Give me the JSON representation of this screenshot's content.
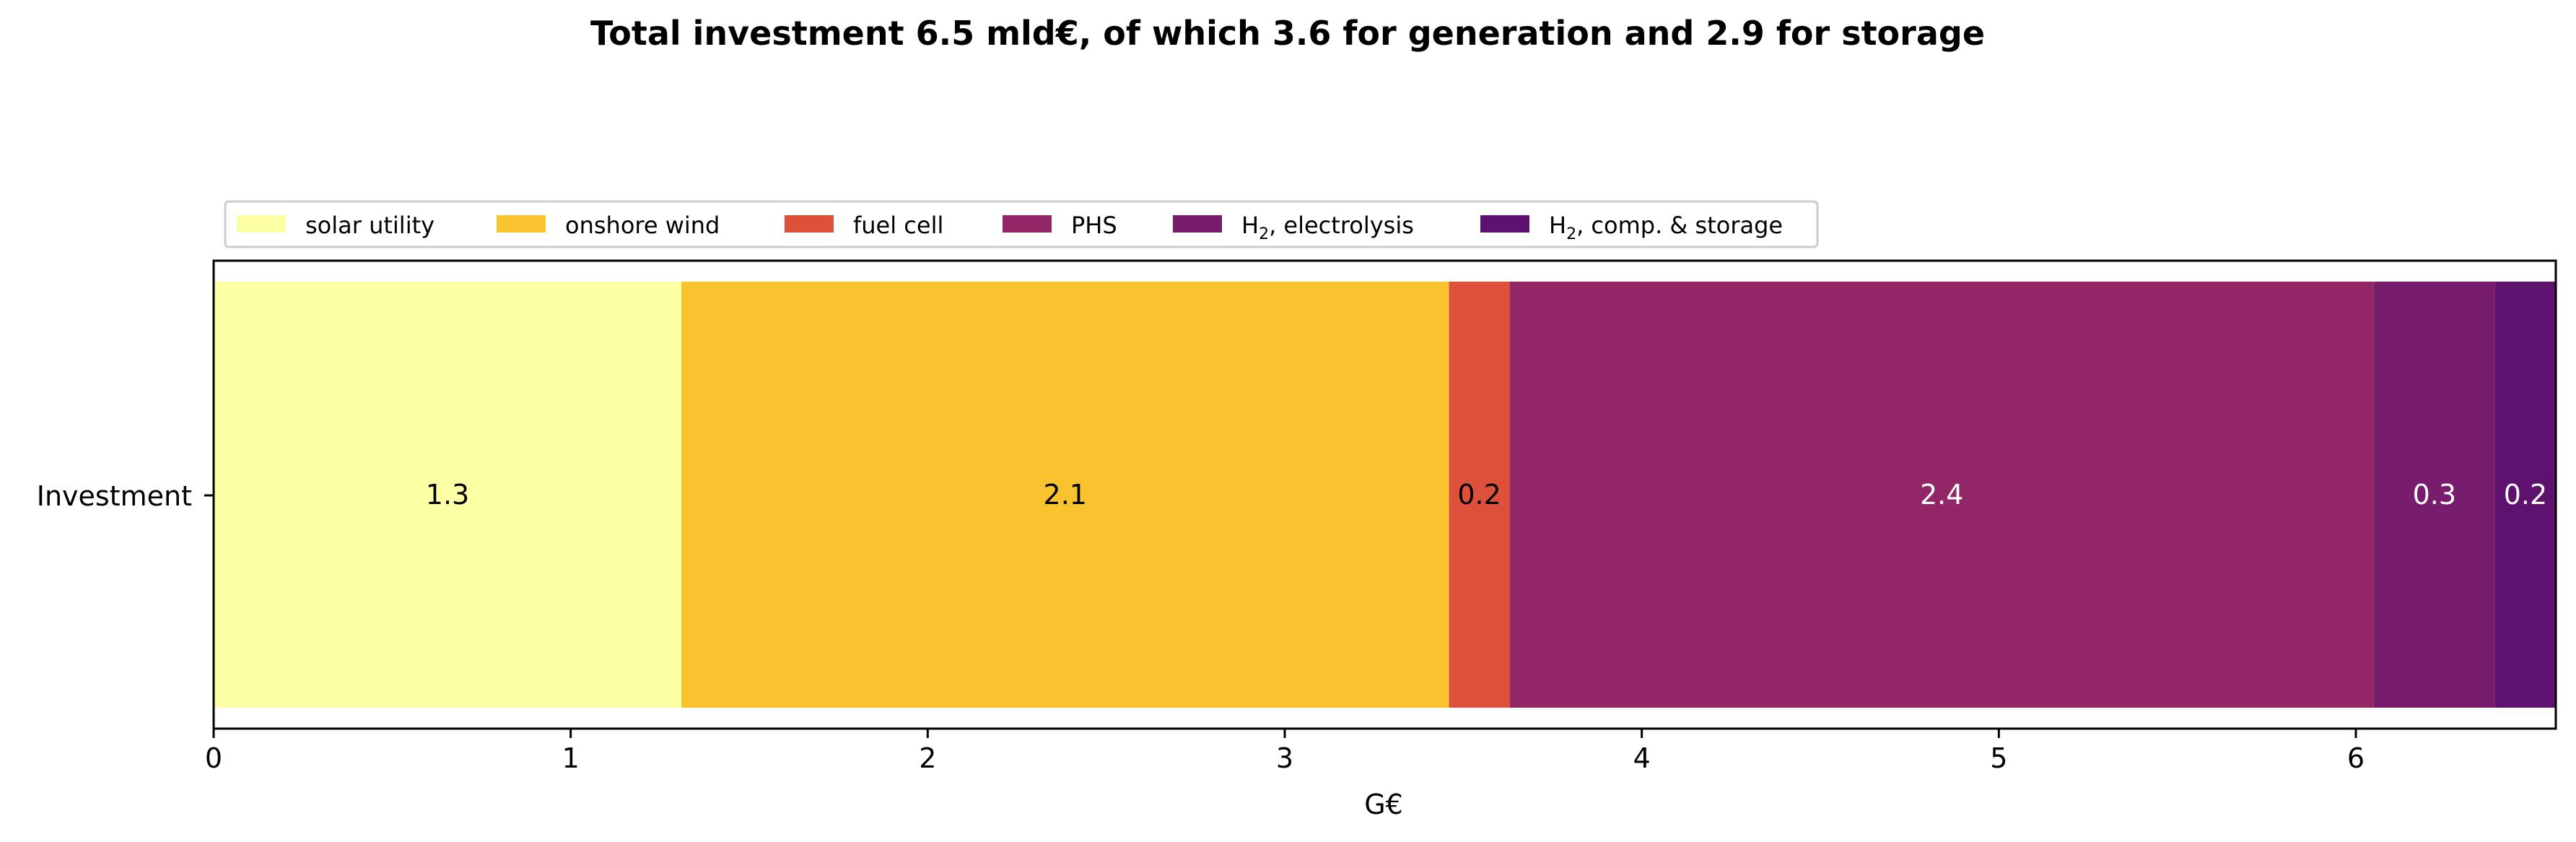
{
  "chart_data": {
    "type": "bar",
    "orientation": "horizontal",
    "stacked": true,
    "title": "Total investment 6.5 mld€, of which 3.6 for generation and 2.9 for storage",
    "xlabel": "G€",
    "ylabel": "",
    "categories": [
      "Investment"
    ],
    "xlim": [
      0,
      6.56
    ],
    "xticks": [
      0,
      1,
      2,
      3,
      4,
      5,
      6
    ],
    "grid": false,
    "legend_position": "top-left, above plot area",
    "series": [
      {
        "name": "solar utility",
        "name_sub": "",
        "name_rest": "",
        "values": [
          1.31
        ],
        "label": "1.3",
        "color": "#fcffa4",
        "label_color": "#000000"
      },
      {
        "name": "onshore wind",
        "name_sub": "",
        "name_rest": "",
        "values": [
          2.15
        ],
        "label": "2.1",
        "color": "#f8c32f",
        "label_color": "#000000"
      },
      {
        "name": "fuel cell",
        "name_sub": "",
        "name_rest": "",
        "values": [
          0.17
        ],
        "label": "0.2",
        "color": "#dd513a",
        "label_color": "#000000"
      },
      {
        "name": "PHS",
        "name_sub": "",
        "name_rest": "",
        "values": [
          2.42
        ],
        "label": "2.4",
        "color": "#932667",
        "label_color": "#ffffff"
      },
      {
        "name": "H",
        "name_sub": "2",
        "name_rest": ", electrolysis",
        "values": [
          0.34
        ],
        "label": "0.3",
        "color": "#781c6d",
        "label_color": "#ffffff"
      },
      {
        "name": "H",
        "name_sub": "2",
        "name_rest": ", comp. & storage",
        "values": [
          0.17
        ],
        "label": "0.2",
        "color": "#5c126e",
        "label_color": "#ffffff"
      }
    ]
  }
}
